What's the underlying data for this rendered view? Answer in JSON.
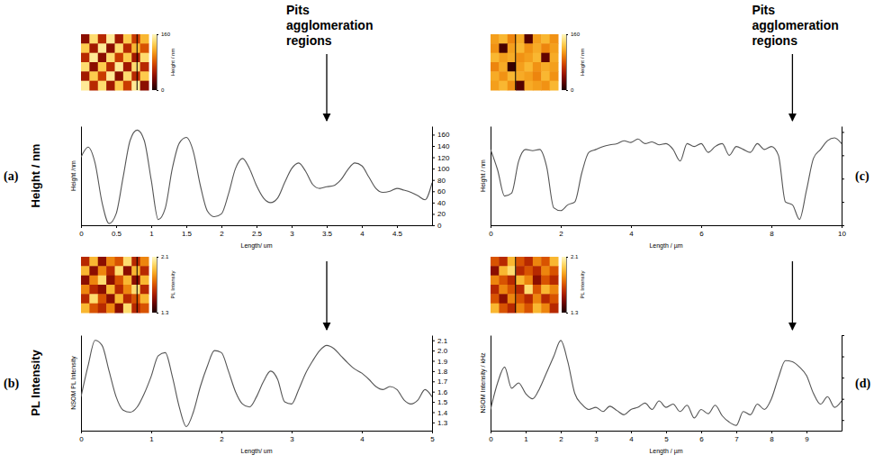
{
  "chart_data": [
    {
      "type": "line",
      "panel": "(a)",
      "row_label": "Height / nm",
      "xlabel": "Length/ um",
      "ylabel": "Height /nm",
      "annotation": "Pits agglomeration regions",
      "arrow_x": 3.5,
      "color": "#555555",
      "grid": false,
      "x": [
        0,
        0.1,
        0.2,
        0.3,
        0.4,
        0.5,
        0.6,
        0.7,
        0.8,
        0.9,
        1,
        1.1,
        1.2,
        1.3,
        1.4,
        1.5,
        1.6,
        1.7,
        1.8,
        1.9,
        2,
        2.1,
        2.2,
        2.3,
        2.4,
        2.5,
        2.6,
        2.7,
        2.8,
        2.9,
        3,
        3.1,
        3.2,
        3.3,
        3.4,
        3.5,
        3.6,
        3.7,
        3.8,
        3.9,
        4,
        4.1,
        4.2,
        4.3,
        4.4,
        4.5,
        4.6,
        4.7,
        4.8,
        4.9,
        5
      ],
      "values": [
        120,
        138,
        110,
        40,
        3,
        20,
        85,
        150,
        168,
        150,
        80,
        10,
        30,
        100,
        145,
        155,
        130,
        70,
        25,
        15,
        20,
        55,
        100,
        118,
        100,
        70,
        48,
        40,
        48,
        75,
        100,
        110,
        95,
        72,
        65,
        68,
        70,
        80,
        98,
        110,
        105,
        85,
        65,
        58,
        60,
        65,
        62,
        58,
        52,
        45,
        75
      ],
      "xlim": [
        0,
        5
      ],
      "xticks": [
        0,
        0.5,
        1,
        1.5,
        2,
        2.5,
        3,
        3.5,
        4,
        4.5
      ],
      "ylim": [
        0,
        175
      ],
      "yticks": [
        0,
        20,
        40,
        60,
        80,
        100,
        120,
        140,
        160
      ],
      "image": {
        "label": "Height / nm",
        "range": [
          0,
          160
        ],
        "ticks": [
          0,
          160
        ],
        "cells": [
          [
            40,
            140,
            60,
            150,
            50,
            130,
            70,
            120
          ],
          [
            130,
            50,
            150,
            40,
            140,
            60,
            120,
            80
          ],
          [
            60,
            150,
            40,
            140,
            70,
            130,
            50,
            140
          ],
          [
            140,
            40,
            130,
            60,
            150,
            50,
            140,
            60
          ],
          [
            50,
            130,
            70,
            150,
            40,
            140,
            60,
            130
          ],
          [
            150,
            60,
            140,
            50,
            130,
            70,
            150,
            40
          ]
        ]
      }
    },
    {
      "type": "line",
      "panel": "(b)",
      "row_label": "PL Intensity",
      "xlabel": "Length/ um",
      "ylabel": "NSOM PL Intensity",
      "arrow_x": 3.5,
      "color": "#555555",
      "grid": false,
      "x": [
        0,
        0.1,
        0.2,
        0.3,
        0.4,
        0.5,
        0.6,
        0.7,
        0.8,
        0.9,
        1,
        1.1,
        1.2,
        1.3,
        1.4,
        1.5,
        1.6,
        1.7,
        1.8,
        1.9,
        2,
        2.1,
        2.2,
        2.3,
        2.4,
        2.5,
        2.6,
        2.7,
        2.8,
        2.9,
        3,
        3.1,
        3.2,
        3.3,
        3.4,
        3.5,
        3.6,
        3.7,
        3.8,
        3.9,
        4,
        4.1,
        4.2,
        4.3,
        4.4,
        4.5,
        4.6,
        4.7,
        4.8,
        4.9,
        5
      ],
      "values": [
        1.55,
        1.85,
        2.1,
        2.05,
        1.8,
        1.55,
        1.42,
        1.4,
        1.45,
        1.58,
        1.75,
        1.95,
        1.98,
        1.75,
        1.45,
        1.26,
        1.4,
        1.65,
        1.85,
        2.0,
        1.98,
        1.8,
        1.6,
        1.48,
        1.45,
        1.55,
        1.7,
        1.8,
        1.72,
        1.5,
        1.48,
        1.62,
        1.78,
        1.9,
        2.0,
        2.05,
        2.02,
        1.95,
        1.88,
        1.82,
        1.78,
        1.72,
        1.65,
        1.62,
        1.65,
        1.62,
        1.52,
        1.48,
        1.52,
        1.62,
        1.55
      ],
      "xlim": [
        0,
        5
      ],
      "xticks": [
        0,
        1,
        2,
        3,
        4,
        5
      ],
      "ylim": [
        1.22,
        2.15
      ],
      "yticks": [
        1.3,
        1.4,
        1.5,
        1.6,
        1.7,
        1.8,
        1.9,
        {
          "value": 2,
          "label": "2.0"
        },
        2.1
      ],
      "image": {
        "label": "PL Intensity",
        "range": [
          1.3,
          2.1
        ],
        "ticks": [
          1.3,
          2.1
        ],
        "cells": [
          [
            1.6,
            1.9,
            1.5,
            1.8,
            1.7,
            2.0,
            1.6,
            1.8
          ],
          [
            1.9,
            1.5,
            1.8,
            1.6,
            2.0,
            1.5,
            1.9,
            1.6
          ],
          [
            1.5,
            1.8,
            2.0,
            1.5,
            1.7,
            1.9,
            1.5,
            1.9
          ],
          [
            1.8,
            1.6,
            1.5,
            1.9,
            1.6,
            1.8,
            2.0,
            1.6
          ],
          [
            1.6,
            2.0,
            1.7,
            1.5,
            1.9,
            1.6,
            1.7,
            1.9
          ],
          [
            1.9,
            1.7,
            1.6,
            1.8,
            1.5,
            2.0,
            1.6,
            1.7
          ]
        ]
      }
    },
    {
      "type": "line",
      "panel": "(c)",
      "xlabel": "Length / µm",
      "ylabel": "Height / nm",
      "annotation": "Pits agglomeration regions",
      "arrow_x": 8.6,
      "color": "#555555",
      "grid": false,
      "tick_labels": "x",
      "x": [
        0,
        0.2,
        0.4,
        0.6,
        0.8,
        1,
        1.2,
        1.4,
        1.6,
        1.8,
        2,
        2.2,
        2.4,
        2.6,
        2.8,
        3,
        3.2,
        3.4,
        3.6,
        3.8,
        4,
        4.2,
        4.4,
        4.6,
        4.8,
        5,
        5.2,
        5.4,
        5.6,
        5.8,
        6,
        6.2,
        6.4,
        6.6,
        6.8,
        7,
        7.2,
        7.4,
        7.6,
        7.8,
        8,
        8.2,
        8.4,
        8.6,
        8.8,
        9,
        9.2,
        9.4,
        9.6,
        9.8,
        10
      ],
      "values": [
        130,
        95,
        50,
        55,
        110,
        130,
        128,
        130,
        100,
        30,
        25,
        35,
        40,
        90,
        125,
        130,
        135,
        138,
        140,
        145,
        142,
        148,
        140,
        143,
        138,
        140,
        130,
        110,
        140,
        135,
        140,
        125,
        135,
        140,
        120,
        135,
        130,
        125,
        140,
        130,
        135,
        120,
        40,
        35,
        10,
        60,
        115,
        130,
        145,
        150,
        140
      ],
      "xlim": [
        0,
        10
      ],
      "xticks": [
        0,
        2,
        4,
        6,
        8,
        10
      ],
      "ylim": [
        0,
        170
      ],
      "yticks": [
        0,
        40,
        80,
        120,
        160
      ],
      "image": {
        "label": "Height / nm",
        "range": [
          0,
          160
        ],
        "ticks": [
          0,
          160
        ],
        "cells": [
          [
            110,
            120,
            100,
            115,
            20,
            110,
            120,
            105
          ],
          [
            105,
            15,
            110,
            120,
            105,
            115,
            100,
            110
          ],
          [
            120,
            110,
            115,
            105,
            110,
            120,
            25,
            115
          ],
          [
            100,
            115,
            10,
            110,
            120,
            105,
            115,
            110
          ],
          [
            115,
            105,
            120,
            115,
            110,
            100,
            120,
            105
          ],
          [
            110,
            120,
            105,
            20,
            115,
            110,
            105,
            120
          ]
        ]
      }
    },
    {
      "type": "line",
      "panel": "(d)",
      "xlabel": "Length / µm",
      "ylabel": "NSOM Intensity / kHz",
      "arrow_x": 8.6,
      "color": "#555555",
      "grid": false,
      "tick_labels": "x",
      "x": [
        0,
        0.2,
        0.4,
        0.6,
        0.8,
        1,
        1.2,
        1.4,
        1.6,
        1.8,
        2,
        2.2,
        2.4,
        2.6,
        2.8,
        3,
        3.2,
        3.4,
        3.6,
        3.8,
        4,
        4.2,
        4.4,
        4.6,
        4.8,
        5,
        5.2,
        5.4,
        5.6,
        5.8,
        6,
        6.2,
        6.4,
        6.6,
        6.8,
        7,
        7.2,
        7.4,
        7.6,
        7.8,
        8,
        8.2,
        8.4,
        8.6,
        8.8,
        9,
        9.2,
        9.4,
        9.6,
        9.8,
        10
      ],
      "values": [
        3.0,
        5.5,
        7.0,
        5.0,
        5.5,
        4.5,
        4.0,
        5.0,
        6.5,
        8.0,
        9.5,
        7.5,
        4.5,
        3.5,
        3.0,
        3.2,
        2.8,
        3.3,
        2.9,
        2.5,
        3.0,
        3.2,
        3.6,
        3.0,
        3.8,
        3.2,
        3.5,
        2.8,
        3.4,
        2.2,
        3.0,
        2.6,
        3.4,
        2.4,
        1.8,
        1.5,
        2.8,
        2.5,
        3.5,
        3.0,
        4.0,
        6.0,
        7.6,
        7.5,
        7.0,
        6.2,
        4.5,
        3.5,
        4.2,
        3.2,
        3.8
      ],
      "xlim": [
        0,
        10
      ],
      "xticks": [
        0,
        1,
        2,
        3,
        4,
        5,
        6,
        7,
        8,
        9
      ],
      "ylim": [
        1,
        10
      ],
      "yticks": [
        2,
        4,
        6,
        8,
        10
      ],
      "image": {
        "label": "PL Intensity",
        "range": [
          1.3,
          2.1
        ],
        "ticks": [
          1.3,
          2.1
        ],
        "cells": [
          [
            1.7,
            1.6,
            1.9,
            1.7,
            1.6,
            1.8,
            1.7,
            1.9
          ],
          [
            1.5,
            1.9,
            2.0,
            1.6,
            1.7,
            1.6,
            1.8,
            1.7
          ],
          [
            1.8,
            1.7,
            1.6,
            1.9,
            1.8,
            1.5,
            1.7,
            1.6
          ],
          [
            1.6,
            1.8,
            1.7,
            1.6,
            2.0,
            1.7,
            1.9,
            1.8
          ],
          [
            1.7,
            1.5,
            1.8,
            1.7,
            1.6,
            1.8,
            1.6,
            1.7
          ],
          [
            1.9,
            1.7,
            1.6,
            1.8,
            1.7,
            1.9,
            1.8,
            1.6
          ]
        ]
      }
    }
  ]
}
